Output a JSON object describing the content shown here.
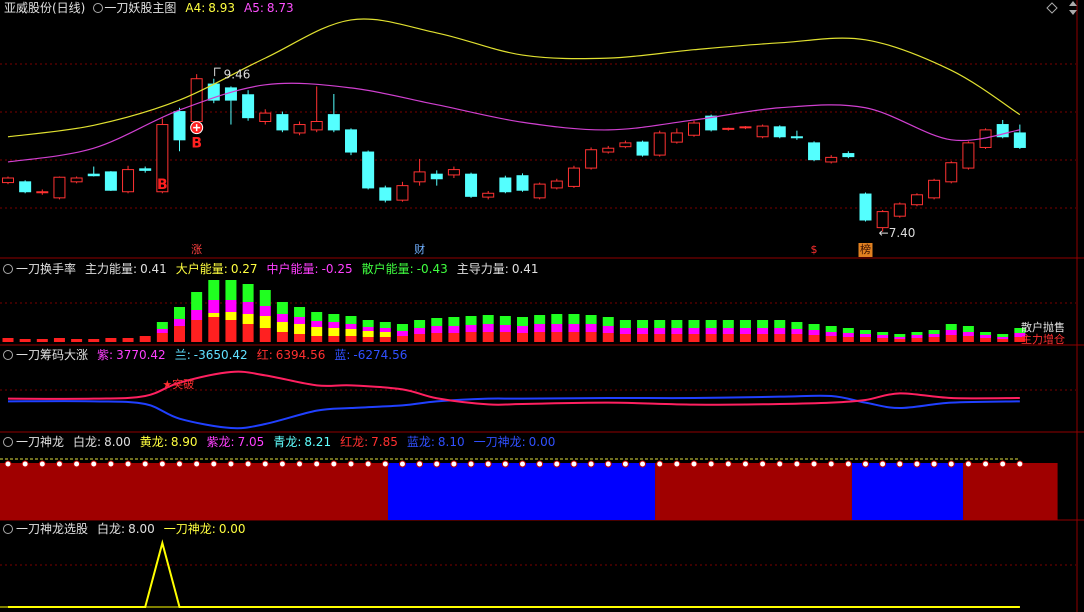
{
  "chart_data": [
    {
      "type": "candlestick",
      "title": "亚威股份(日线)",
      "subtitle": "一刀妖股主图",
      "legend": [
        {
          "label": "A4:",
          "value": 8.93,
          "color": "#ffff40"
        },
        {
          "label": "A5:",
          "value": 8.73,
          "color": "#ff50ff"
        }
      ],
      "up_color": "#ff3232",
      "down_color": "#54ffff",
      "ylim": [
        7.0,
        10.3
      ],
      "smooth": true,
      "ohlc": [
        [
          8.04,
          8.12,
          8.02,
          8.1
        ],
        [
          8.05,
          8.07,
          7.9,
          7.92
        ],
        [
          7.91,
          7.95,
          7.88,
          7.92
        ],
        [
          7.84,
          8.12,
          7.82,
          8.11
        ],
        [
          8.05,
          8.12,
          8.03,
          8.1
        ],
        [
          8.15,
          8.25,
          8.12,
          8.13
        ],
        [
          8.18,
          8.19,
          7.93,
          7.94
        ],
        [
          7.92,
          8.26,
          7.9,
          8.21
        ],
        [
          8.22,
          8.25,
          8.17,
          8.2
        ],
        [
          7.92,
          8.88,
          7.9,
          8.8
        ],
        [
          8.97,
          9.02,
          8.45,
          8.6
        ],
        [
          8.84,
          9.46,
          8.8,
          9.4
        ],
        [
          9.33,
          9.4,
          9.08,
          9.12
        ],
        [
          9.28,
          9.3,
          8.8,
          9.12
        ],
        [
          9.19,
          9.25,
          8.85,
          8.89
        ],
        [
          8.84,
          9.0,
          8.8,
          8.95
        ],
        [
          8.93,
          8.97,
          8.7,
          8.73
        ],
        [
          8.69,
          8.84,
          8.66,
          8.8
        ],
        [
          8.73,
          9.3,
          8.7,
          8.84
        ],
        [
          8.93,
          9.2,
          8.7,
          8.73
        ],
        [
          8.73,
          8.75,
          8.4,
          8.44
        ],
        [
          8.44,
          8.46,
          7.95,
          7.97
        ],
        [
          7.97,
          8.0,
          7.78,
          7.81
        ],
        [
          7.81,
          8.05,
          7.79,
          8.0
        ],
        [
          8.05,
          8.35,
          8.0,
          8.18
        ],
        [
          8.15,
          8.2,
          8.0,
          8.09
        ],
        [
          8.14,
          8.25,
          8.1,
          8.21
        ],
        [
          8.15,
          8.17,
          7.84,
          7.86
        ],
        [
          7.85,
          7.93,
          7.82,
          7.9
        ],
        [
          8.1,
          8.13,
          7.9,
          7.92
        ],
        [
          8.13,
          8.16,
          7.92,
          7.94
        ],
        [
          7.84,
          8.04,
          7.82,
          8.02
        ],
        [
          7.97,
          8.09,
          7.95,
          8.06
        ],
        [
          7.99,
          8.26,
          7.97,
          8.23
        ],
        [
          8.23,
          8.5,
          8.21,
          8.47
        ],
        [
          8.44,
          8.52,
          8.42,
          8.49
        ],
        [
          8.51,
          8.59,
          8.49,
          8.56
        ],
        [
          8.57,
          8.59,
          8.38,
          8.4
        ],
        [
          8.4,
          8.72,
          8.38,
          8.69
        ],
        [
          8.57,
          8.75,
          8.55,
          8.69
        ],
        [
          8.66,
          8.85,
          8.64,
          8.82
        ],
        [
          8.91,
          8.93,
          8.71,
          8.73
        ],
        [
          8.74,
          8.76,
          8.72,
          8.75
        ],
        [
          8.76,
          8.78,
          8.74,
          8.77
        ],
        [
          8.64,
          8.8,
          8.62,
          8.78
        ],
        [
          8.77,
          8.79,
          8.62,
          8.64
        ],
        [
          8.64,
          8.72,
          8.6,
          8.63
        ],
        [
          8.56,
          8.58,
          8.32,
          8.34
        ],
        [
          8.31,
          8.4,
          8.29,
          8.37
        ],
        [
          8.42,
          8.45,
          8.36,
          8.38
        ],
        [
          7.89,
          7.91,
          7.53,
          7.55
        ],
        [
          7.45,
          7.68,
          7.4,
          7.66
        ],
        [
          7.6,
          7.78,
          7.58,
          7.76
        ],
        [
          7.75,
          7.9,
          7.73,
          7.88
        ],
        [
          7.84,
          8.09,
          7.82,
          8.07
        ],
        [
          8.05,
          8.32,
          8.03,
          8.3
        ],
        [
          8.23,
          8.58,
          8.21,
          8.56
        ],
        [
          8.5,
          8.75,
          8.48,
          8.73
        ],
        [
          8.8,
          8.86,
          8.62,
          8.64
        ],
        [
          8.69,
          8.8,
          8.48,
          8.5
        ]
      ],
      "x": [
        0,
        5,
        10,
        15,
        20,
        25,
        30,
        35,
        40,
        45,
        50,
        55,
        59
      ],
      "series": [
        {
          "color": "#e0e030",
          "values": [
            8.64,
            8.79,
            9.12,
            9.67,
            10.17,
            10.0,
            9.71,
            9.67,
            9.78,
            9.87,
            9.91,
            9.51,
            8.93
          ]
        },
        {
          "color": "#d040d0",
          "values": [
            8.31,
            8.49,
            8.99,
            9.32,
            9.28,
            9.06,
            8.83,
            8.73,
            8.86,
            9.02,
            9.02,
            8.6,
            8.73
          ]
        }
      ],
      "high_label": {
        "value": 9.46,
        "x": 11
      },
      "low_label": {
        "value": 7.4,
        "label": "←7.40",
        "x": 51
      },
      "signals": [
        {
          "text": "B",
          "x": 9,
          "y": 8.01
        },
        {
          "text": "B",
          "x": 11,
          "y": 8.55,
          "circle": true
        }
      ],
      "markers": [
        {
          "text": "涨",
          "x": 11,
          "color": "#ff4040"
        },
        {
          "text": "财",
          "x": 24,
          "color": "#70b0ff"
        },
        {
          "text": "$",
          "x": 47,
          "color": "#ff3030"
        },
        {
          "text": "榜",
          "x": 50,
          "color": "#3a1000",
          "background": "#e08020"
        }
      ]
    },
    {
      "type": "bar",
      "title": "一刀换手率",
      "legend": [
        {
          "label": "主力能量:",
          "value": 0.41,
          "color": "#e0e0e0"
        },
        {
          "label": "大户能量:",
          "value": 0.27,
          "color": "#ffff40"
        },
        {
          "label": "中户能量:",
          "value": -0.25,
          "color": "#ff40ff"
        },
        {
          "label": "散户能量:",
          "value": -0.43,
          "color": "#40ff40"
        },
        {
          "label": "主导力量:",
          "value": 0.41,
          "color": "#e0e0e0"
        }
      ],
      "ylim": [
        0,
        80
      ],
      "series": [
        {
          "color": "#ff2020",
          "values": [
            4,
            3,
            3,
            4,
            3,
            3,
            4,
            4,
            6,
            9,
            16,
            22,
            25,
            22,
            18,
            14,
            10,
            8,
            6,
            6,
            6,
            5,
            5,
            6,
            8,
            9,
            9,
            10,
            10,
            10,
            9,
            10,
            10,
            10,
            10,
            9,
            8,
            8,
            8,
            8,
            8,
            8,
            8,
            8,
            8,
            8,
            8,
            7,
            6,
            5,
            5,
            4,
            3,
            4,
            5,
            7,
            6,
            4,
            3,
            5
          ]
        },
        {
          "color": "#ffff00",
          "values": [
            0,
            0,
            0,
            0,
            0,
            0,
            0,
            0,
            0,
            0,
            0,
            0,
            4,
            8,
            10,
            12,
            10,
            10,
            9,
            8,
            7,
            6,
            5,
            0,
            0,
            0,
            0,
            0,
            0,
            0,
            0,
            0,
            0,
            0,
            0,
            0,
            0,
            0,
            0,
            0,
            0,
            0,
            0,
            0,
            0,
            0,
            0,
            0,
            0,
            0,
            0,
            0,
            0,
            0,
            0,
            0,
            0,
            0,
            0,
            0
          ]
        },
        {
          "color": "#ff00ff",
          "values": [
            0,
            0,
            0,
            0,
            0,
            0,
            0,
            0,
            0,
            4,
            7,
            10,
            13,
            12,
            12,
            10,
            8,
            7,
            6,
            6,
            5,
            4,
            4,
            5,
            6,
            7,
            7,
            7,
            8,
            7,
            7,
            8,
            8,
            8,
            8,
            7,
            6,
            6,
            6,
            6,
            6,
            6,
            6,
            6,
            6,
            6,
            5,
            5,
            4,
            4,
            3,
            3,
            2,
            3,
            3,
            5,
            4,
            3,
            2,
            4
          ]
        },
        {
          "color": "#20ff20",
          "values": [
            0,
            0,
            0,
            0,
            0,
            0,
            0,
            0,
            0,
            7,
            12,
            18,
            20,
            20,
            18,
            16,
            12,
            10,
            9,
            8,
            8,
            7,
            6,
            7,
            8,
            8,
            9,
            9,
            9,
            9,
            9,
            9,
            10,
            10,
            9,
            9,
            8,
            8,
            8,
            8,
            8,
            8,
            8,
            8,
            8,
            8,
            7,
            6,
            6,
            5,
            4,
            3,
            3,
            3,
            4,
            6,
            6,
            3,
            3,
            5
          ]
        }
      ],
      "annotations": [
        {
          "text": "散户抛售",
          "color": "#e0e0e0"
        },
        {
          "text": "主力增仓",
          "color": "#ff3030"
        }
      ]
    },
    {
      "type": "line",
      "title": "一刀筹码大涨",
      "legend": [
        {
          "label": "紫:",
          "value": 3770.42,
          "color": "#ff40ff"
        },
        {
          "label": "兰:",
          "value": -3650.42,
          "color": "#60e0ff"
        },
        {
          "label": "红:",
          "value": 6394.56,
          "color": "#ff3030"
        },
        {
          "label": "蓝:",
          "value": -6274.56,
          "color": "#3050ff"
        }
      ],
      "ylim": [
        -24000,
        36000
      ],
      "smooth": true,
      "x": [
        0,
        5,
        8,
        10,
        13,
        15,
        18,
        20,
        23,
        25,
        28,
        30,
        35,
        40,
        45,
        48,
        50,
        52,
        55,
        59
      ],
      "series": [
        {
          "color": "#2040ff",
          "values": [
            -1000,
            -1000,
            -3000,
            -14000,
            -21000,
            -18000,
            -8000,
            -6000,
            -4000,
            -1000,
            1000,
            1000,
            1500,
            1500,
            2500,
            3000,
            -2000,
            -6000,
            -2000,
            -1000
          ]
        },
        {
          "color": "#ff2060",
          "values": [
            1000,
            1000,
            3000,
            13000,
            21000,
            18500,
            11000,
            11000,
            8000,
            1300,
            -3300,
            -3000,
            -2000,
            -3500,
            -3000,
            -2000,
            0,
            5000,
            1500,
            1500
          ]
        }
      ],
      "annotations": [
        {
          "text": "★突破",
          "x": 9,
          "color": "#ff3030"
        }
      ]
    },
    {
      "type": "zones",
      "title": "一刀神龙",
      "legend": [
        {
          "label": "白龙:",
          "value": {
            "value": 8,
            "label": "8.00"
          },
          "color": "#e0e0e0"
        },
        {
          "label": "黄龙:",
          "value": {
            "value": 8.9,
            "label": "8.90"
          },
          "color": "#ffff40"
        },
        {
          "label": "紫龙:",
          "value": 7.05,
          "color": "#ff40ff"
        },
        {
          "label": "青龙:",
          "value": 8.21,
          "color": "#60ffff"
        },
        {
          "label": "红龙:",
          "value": 7.85,
          "color": "#ff3030"
        },
        {
          "label": "蓝龙:",
          "value": {
            "value": 8.1,
            "label": "8.10"
          },
          "color": "#3050ff"
        },
        {
          "label": "一刀神龙:",
          "value": {
            "value": 0,
            "label": "0.00"
          },
          "color": "#3050ff"
        }
      ],
      "zones": [
        {
          "from": -0.47,
          "to": 22.16,
          "color": "#a00000"
        },
        {
          "from": 22.16,
          "to": 37.73,
          "color": "#0000ff"
        },
        {
          "from": 37.73,
          "to": 49.21,
          "color": "#a00000"
        },
        {
          "from": 49.21,
          "to": 55.69,
          "color": "#0000ff"
        },
        {
          "from": 55.69,
          "to": 61.2,
          "color": "#a00000"
        }
      ]
    },
    {
      "type": "line",
      "title": "一刀神龙选股",
      "legend": [
        {
          "label": "白龙:",
          "value": {
            "value": 8,
            "label": "8.00"
          },
          "color": "#e0e0e0"
        },
        {
          "label": "一刀神龙:",
          "value": {
            "value": 0,
            "label": "0.00"
          },
          "color": "#ffff40"
        }
      ],
      "ylim": [
        0,
        1
      ],
      "smooth": false,
      "x": [
        0,
        8,
        9,
        10,
        59
      ],
      "series": [
        {
          "color": "#ffff00",
          "values": [
            0,
            0,
            1,
            0,
            0
          ]
        }
      ]
    }
  ]
}
